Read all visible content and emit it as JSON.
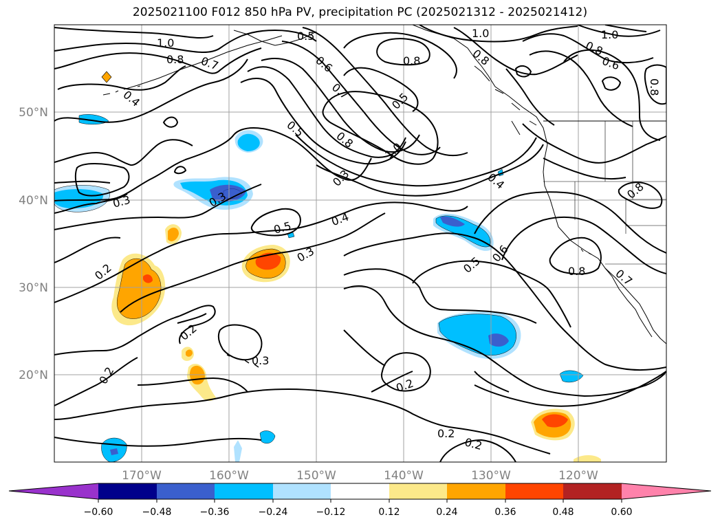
{
  "title": "2025021100 F012 850 hPa PV, precipitation PC (2025021312 - 2025021412)",
  "lat_labels": [
    "50°N",
    "40°N",
    "30°N",
    "20°N"
  ],
  "lon_labels": [
    "170°W",
    "160°W",
    "150°W",
    "140°W",
    "130°W",
    "120°W"
  ],
  "contour_labels": [
    "1.0",
    "0.8",
    "0.7",
    "0.6",
    "0.5",
    "0.4",
    "0.3",
    "0.2"
  ],
  "colorbar": {
    "tick_labels": [
      "−0.60",
      "−0.48",
      "−0.36",
      "−0.24",
      "−0.12",
      "0.12",
      "0.24",
      "0.36",
      "0.48",
      "0.60"
    ],
    "colors": [
      "#9932cc",
      "#00008b",
      "#3a5fcd",
      "#00bfff",
      "#b0e2ff",
      "#ffffff",
      "#fce98a",
      "#ffa500",
      "#ff4500",
      "#b22222",
      "#ff82ab"
    ]
  },
  "fill_colors": {
    "light_blue": "#b0e2ff",
    "blue": "#00bfff",
    "royal": "#3a5fcd",
    "navy": "#00008b",
    "yellow": "#fce98a",
    "orange": "#ffa500",
    "red_orange": "#ff4500"
  }
}
